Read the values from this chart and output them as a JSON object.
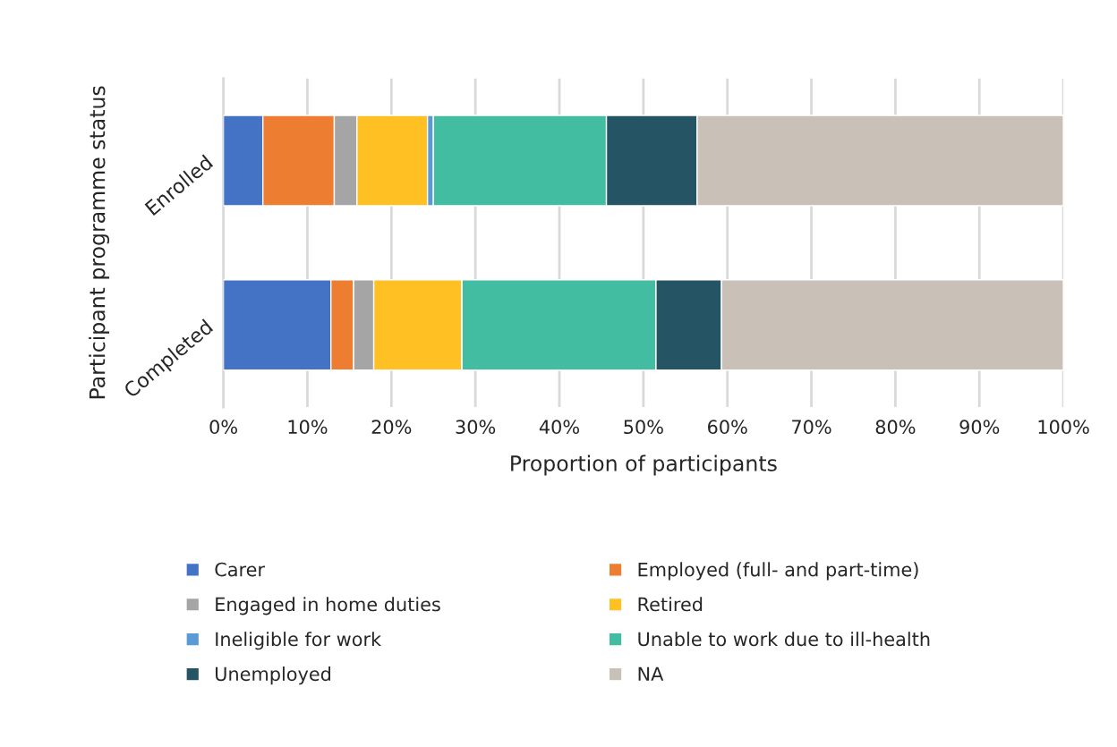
{
  "chart_data": {
    "type": "bar",
    "orientation": "horizontal",
    "stacked": true,
    "xlabel": "Proportion of participants",
    "ylabel": "Participant programme status",
    "categories": [
      "Enrolled",
      "Completed"
    ],
    "series": [
      {
        "name": "Carer",
        "color": "#4472c4",
        "values": [
          4.7,
          12.8
        ]
      },
      {
        "name": "Employed (full- and part-time)",
        "color": "#ed7d31",
        "values": [
          8.5,
          2.7
        ]
      },
      {
        "name": "Engaged in home duties",
        "color": "#a5a5a5",
        "values": [
          2.7,
          2.4
        ]
      },
      {
        "name": "Retired",
        "color": "#ffc024",
        "values": [
          8.4,
          10.5
        ]
      },
      {
        "name": "Ineligible for work",
        "color": "#5b9bd5",
        "values": [
          0.7,
          0
        ]
      },
      {
        "name": "Unable to work due to ill-health",
        "color": "#43bda2",
        "values": [
          20.6,
          23.1
        ]
      },
      {
        "name": "Unemployed",
        "color": "#255464",
        "values": [
          10.8,
          7.8
        ]
      },
      {
        "name": "NA",
        "color": "#c9c0b7",
        "values": [
          43.6,
          40.7
        ]
      }
    ],
    "xlim": [
      0,
      100
    ],
    "xticks": [
      {
        "value": 0,
        "label": "0%"
      },
      {
        "value": 10,
        "label": "10%"
      },
      {
        "value": 20,
        "label": "20%"
      },
      {
        "value": 30,
        "label": "30%"
      },
      {
        "value": 40,
        "label": "40%"
      },
      {
        "value": 50,
        "label": "50%"
      },
      {
        "value": 60,
        "label": "60%"
      },
      {
        "value": 70,
        "label": "70%"
      },
      {
        "value": 80,
        "label": "80%"
      },
      {
        "value": 90,
        "label": "90%"
      },
      {
        "value": 100,
        "label": "100%"
      }
    ],
    "grid": "x",
    "legend": "bottom"
  }
}
